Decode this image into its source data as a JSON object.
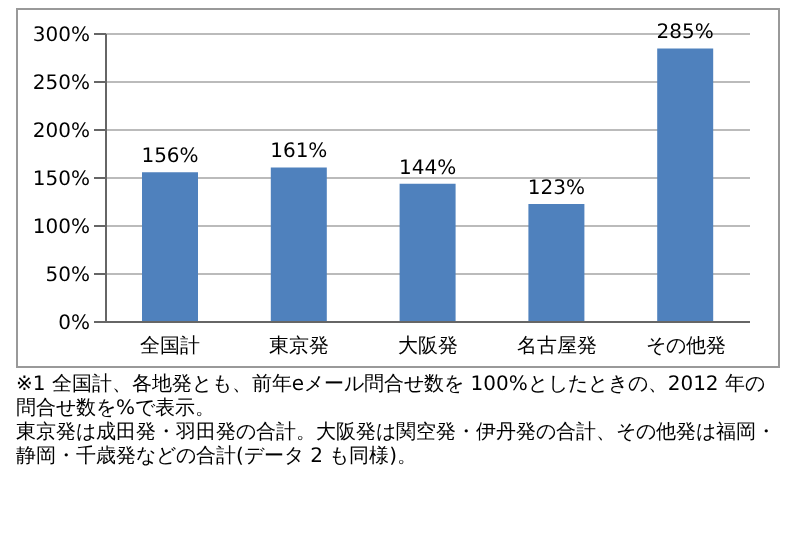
{
  "chart_data": {
    "type": "bar",
    "categories": [
      "全国計",
      "東京発",
      "大阪発",
      "名古屋発",
      "その他発"
    ],
    "values": [
      156,
      161,
      144,
      123,
      285
    ],
    "color": "#4f81bd",
    "ylim": [
      0,
      300
    ],
    "yticks": [
      {
        "value": 0,
        "label": "0%"
      },
      {
        "value": 50,
        "label": "50%"
      },
      {
        "value": 100,
        "label": "100%"
      },
      {
        "value": 150,
        "label": "150%"
      },
      {
        "value": 200,
        "label": "200%"
      },
      {
        "value": 250,
        "label": "250%"
      },
      {
        "value": 300,
        "label": "300%"
      }
    ],
    "grid": "y",
    "value_labels": [
      "156%",
      "161%",
      "144%",
      "123%",
      "285%"
    ],
    "annotations": [
      "※1 全国計、各地発とも、前年eメール問合せ数を 100%としたときの、2012 年の問合せ数を%で表示。",
      "東京発は成田発・羽田発の合計。大阪発は関空発・伊丹発の合計、その他発は福岡・静岡・千歳発などの合計(データ 2 も同様)。"
    ]
  }
}
